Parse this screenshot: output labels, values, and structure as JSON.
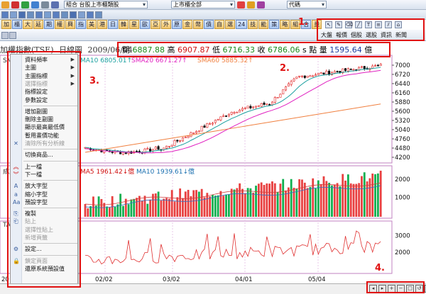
{
  "toolbar": {
    "combo_portfolio": "組合 台股上市櫃類股",
    "combo_market": "上市櫃全部",
    "combo_code": "代碼"
  },
  "menus": [
    "大盤",
    "報價",
    "個股",
    "選股",
    "資訊",
    "新聞"
  ],
  "tab_buttons": [
    "加",
    "櫃",
    "大",
    "延",
    "期",
    "權",
    "興",
    "指",
    "美",
    "港",
    "日",
    "韓",
    "星",
    "歐",
    "亞",
    "外",
    "原",
    "金",
    "幣",
    "債",
    "自",
    "選",
    "24",
    "技",
    "能",
    "策",
    "略",
    "組",
    "合",
    "量"
  ],
  "header": {
    "title": "加權指數(TSE)",
    "period": "日線圖",
    "date": "2009/06/04",
    "open_label": "開",
    "open": "6887.88",
    "high_label": "高",
    "high": "6907.87",
    "low_label": "低",
    "low": "6716.33",
    "close_label": "收",
    "close": "6786.06",
    "s_label": "s",
    "vol_label": "點 量",
    "volume": "1595.64",
    "vol_unit": "億"
  },
  "sma": {
    "prefix": "SMA",
    "sma10": "MA10 6805.01↑",
    "sma20": "SMA20 6671.27↑",
    "sma60": "SMA60 5885.32↑"
  },
  "volume_panel": {
    "ma5": "MA5 1961.42↓億",
    "ma10": "MA10 1939.61↓億",
    "prefix": "成交"
  },
  "third_panel": {
    "prefix": "TA"
  },
  "price_axis": [
    "7000",
    "6720",
    "6440",
    "6160",
    "5880",
    "5600",
    "5320",
    "5040",
    "4760",
    "4480",
    "4200"
  ],
  "volume_axis": [
    "2000",
    "1000"
  ],
  "third_axis": [
    "3000",
    "2000"
  ],
  "date_axis": [
    "02/02",
    "03/02",
    "04/01",
    "05/04"
  ],
  "axis_left_fragment": "20",
  "context_menu": [
    {
      "label": "資料頻率",
      "arrow": true,
      "disabled": false
    },
    {
      "label": "主圖",
      "arrow": true,
      "disabled": false
    },
    {
      "label": "主圖指標",
      "arrow": true,
      "disabled": false
    },
    {
      "label": "選擇指標",
      "arrow": true,
      "disabled": true
    },
    {
      "label": "指標設定",
      "arrow": false,
      "disabled": false
    },
    {
      "label": "參數設定",
      "arrow": false,
      "disabled": false
    },
    {
      "sep": true
    },
    {
      "label": "增加副圖",
      "arrow": false,
      "disabled": false
    },
    {
      "label": "刪除主副圖",
      "arrow": false,
      "disabled": false
    },
    {
      "label": "顯示最高最低價",
      "arrow": false,
      "disabled": false
    },
    {
      "label": "暫用畫價功能",
      "arrow": false,
      "disabled": false
    },
    {
      "label": "清除所有分析線",
      "arrow": false,
      "disabled": true
    },
    {
      "sep": true
    },
    {
      "label": "切換商品...",
      "arrow": false,
      "disabled": false
    },
    {
      "sep": true
    },
    {
      "label": "上一檔",
      "arrow": false,
      "disabled": false
    },
    {
      "label": "下一檔",
      "arrow": false,
      "disabled": false
    },
    {
      "sep": true
    },
    {
      "label": "放大字型",
      "arrow": false,
      "disabled": false
    },
    {
      "label": "縮小字型",
      "arrow": false,
      "disabled": false
    },
    {
      "label": "預設字型",
      "arrow": false,
      "disabled": false
    },
    {
      "sep": true
    },
    {
      "label": "複製",
      "arrow": false,
      "disabled": false
    },
    {
      "label": "貼上",
      "arrow": false,
      "disabled": true
    },
    {
      "label": "選擇性貼上",
      "arrow": false,
      "disabled": true
    },
    {
      "label": "新增頁籤",
      "arrow": false,
      "disabled": true
    },
    {
      "sep": true
    },
    {
      "label": "設定...",
      "arrow": false,
      "disabled": false
    },
    {
      "sep": true
    },
    {
      "label": "鎖定頁面",
      "arrow": false,
      "disabled": true
    },
    {
      "label": "還原系統預設值",
      "arrow": false,
      "disabled": false
    }
  ],
  "annotations": [
    "1.",
    "2.",
    "3.",
    "4."
  ],
  "colors": {
    "up": "#e02020",
    "down": "#000000",
    "ma10": "#1aa0a0",
    "ma20": "#e020c0",
    "ma60": "#f08040",
    "volume_up": "#e84040",
    "volume_down": "#10b050",
    "annotation": "#e01010"
  }
}
